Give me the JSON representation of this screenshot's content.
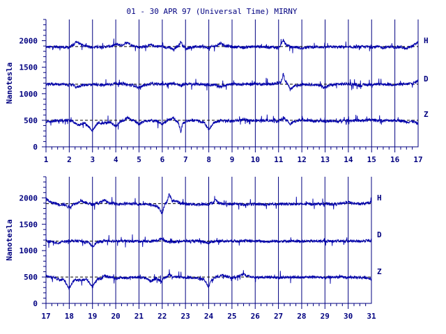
{
  "chart_data": [
    {
      "type": "line",
      "title": "01 - 30 APR 97 (Universal Time) MIRNY",
      "ylabel": "Nanotesla",
      "xlabel": "",
      "xlim": [
        1,
        17
      ],
      "ylim": [
        0,
        2400
      ],
      "yticks": [
        0,
        500,
        1000,
        1500,
        2000
      ],
      "xticks": [
        1,
        2,
        3,
        4,
        5,
        6,
        7,
        8,
        9,
        10,
        11,
        12,
        13,
        14,
        15,
        16,
        17
      ],
      "grid": "vertical day lines",
      "series": [
        {
          "name": "H",
          "baseline": 1890,
          "color": "#0000aa",
          "x": [
            1,
            2,
            2.3,
            3,
            3.5,
            4,
            4.5,
            5,
            5.5,
            6,
            6.5,
            6.8,
            7,
            7.5,
            8,
            8.5,
            9,
            9.5,
            10,
            10.5,
            11,
            11.2,
            11.5,
            12,
            12.5,
            13,
            13.5,
            14,
            14.5,
            15,
            15.5,
            16,
            16.5,
            17
          ],
          "values": [
            1880,
            1870,
            1990,
            1870,
            1880,
            1930,
            1980,
            1870,
            1920,
            1890,
            1820,
            1990,
            1840,
            1890,
            1860,
            1960,
            1880,
            1870,
            1890,
            1880,
            1860,
            2020,
            1880,
            1850,
            1880,
            1870,
            1880,
            1870,
            1880,
            1880,
            1870,
            1880,
            1840,
            1990
          ]
        },
        {
          "name": "D",
          "baseline": 1180,
          "color": "#0000aa",
          "x": [
            1,
            2,
            2.3,
            3,
            3.5,
            4,
            4.5,
            5,
            5.5,
            6,
            6.5,
            6.8,
            7,
            7.5,
            8,
            8.5,
            9,
            9.5,
            10,
            10.5,
            11,
            11.2,
            11.5,
            12,
            12.5,
            13,
            13.5,
            14,
            14.5,
            15,
            15.5,
            16,
            16.5,
            17
          ],
          "values": [
            1180,
            1170,
            1120,
            1180,
            1160,
            1200,
            1170,
            1100,
            1190,
            1180,
            1200,
            1140,
            1190,
            1180,
            1170,
            1130,
            1180,
            1180,
            1190,
            1180,
            1200,
            1380,
            1080,
            1180,
            1170,
            1110,
            1180,
            1190,
            1150,
            1180,
            1180,
            1170,
            1180,
            1250
          ]
        },
        {
          "name": "Z",
          "baseline": 500,
          "color": "#0000aa",
          "x": [
            1,
            2,
            2.3,
            3,
            3.5,
            4,
            4.5,
            5,
            5.5,
            6,
            6.5,
            6.8,
            7,
            7.5,
            8,
            8.5,
            9,
            9.5,
            10,
            10.5,
            11,
            11.2,
            11.5,
            12,
            12.5,
            13,
            13.5,
            14,
            14.5,
            15,
            15.5,
            16,
            16.5,
            17
          ],
          "values": [
            480,
            500,
            420,
            300,
            450,
            380,
            560,
            420,
            500,
            420,
            560,
            280,
            480,
            510,
            320,
            500,
            480,
            510,
            490,
            500,
            480,
            560,
            420,
            520,
            480,
            480,
            470,
            500,
            490,
            510,
            490,
            500,
            470,
            430
          ]
        }
      ]
    },
    {
      "type": "line",
      "title": "",
      "ylabel": "Nanotesla",
      "xlabel": "",
      "xlim": [
        17,
        31
      ],
      "ylim": [
        0,
        2400
      ],
      "yticks": [
        0,
        500,
        1000,
        1500,
        2000
      ],
      "xticks": [
        17,
        18,
        19,
        20,
        21,
        22,
        23,
        24,
        25,
        26,
        27,
        28,
        29,
        30,
        31
      ],
      "grid": "vertical day lines",
      "series": [
        {
          "name": "H",
          "baseline": 1890,
          "color": "#0000aa",
          "x": [
            17,
            17.5,
            18,
            18.5,
            19,
            19.5,
            20,
            20.5,
            21,
            21.5,
            22,
            22.3,
            22.6,
            23,
            23.5,
            24,
            24.3,
            24.6,
            25,
            25.5,
            26,
            26.5,
            27,
            27.5,
            28,
            28.5,
            29,
            29.5,
            30,
            30.5,
            31
          ],
          "values": [
            1990,
            1880,
            1820,
            1960,
            1870,
            1960,
            1880,
            1890,
            1880,
            1880,
            1700,
            2080,
            1940,
            1880,
            1870,
            1880,
            1960,
            1880,
            1880,
            1870,
            1880,
            1870,
            1880,
            1880,
            1880,
            1880,
            1880,
            1880,
            1920,
            1880,
            1920
          ]
        },
        {
          "name": "D",
          "baseline": 1180,
          "color": "#0000aa",
          "x": [
            17,
            17.5,
            18,
            18.5,
            19,
            19.5,
            20,
            20.5,
            21,
            21.5,
            22,
            22.3,
            22.6,
            23,
            23.5,
            24,
            24.3,
            24.6,
            25,
            25.5,
            26,
            26.5,
            27,
            27.5,
            28,
            28.5,
            29,
            29.5,
            30,
            30.5,
            31
          ],
          "values": [
            1180,
            1130,
            1190,
            1180,
            1080,
            1190,
            1180,
            1180,
            1180,
            1170,
            1240,
            1150,
            1170,
            1180,
            1180,
            1140,
            1180,
            1180,
            1180,
            1190,
            1180,
            1170,
            1180,
            1180,
            1180,
            1180,
            1180,
            1180,
            1180,
            1180,
            1200
          ]
        },
        {
          "name": "Z",
          "baseline": 500,
          "color": "#0000aa",
          "x": [
            17,
            17.5,
            18,
            18.5,
            19,
            19.5,
            20,
            20.5,
            21,
            21.5,
            22,
            22.3,
            22.6,
            23,
            23.5,
            24,
            24.3,
            24.6,
            25,
            25.5,
            26,
            26.5,
            27,
            27.5,
            28,
            28.5,
            29,
            29.5,
            30,
            30.5,
            31
          ],
          "values": [
            520,
            460,
            280,
            460,
            300,
            520,
            470,
            480,
            500,
            420,
            420,
            560,
            500,
            490,
            480,
            300,
            500,
            560,
            480,
            560,
            490,
            500,
            480,
            500,
            490,
            500,
            480,
            500,
            490,
            490,
            460
          ]
        }
      ]
    }
  ]
}
